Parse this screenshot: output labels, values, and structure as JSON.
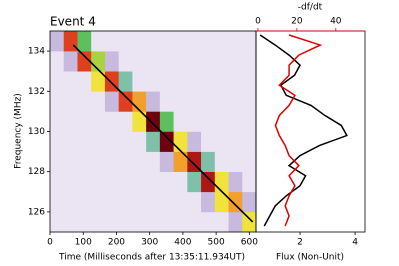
{
  "chart_data": [
    {
      "type": "heatmap",
      "title": "Event 4",
      "xlabel": "Time (Milliseconds after 13:35:11.934UT)",
      "ylabel": "Frequency (MHz)",
      "xlim": [
        0,
        620
      ],
      "ylim": [
        125,
        135
      ],
      "xticks": [
        0,
        100,
        200,
        300,
        400,
        500,
        600
      ],
      "yticks": [
        126,
        128,
        130,
        132,
        134
      ],
      "xbins": [
        0,
        41.33,
        82.67,
        124,
        165.33,
        206.67,
        248,
        289.33,
        330.67,
        372,
        413.33,
        454.67,
        496,
        537.33,
        578.67,
        620
      ],
      "ybins": [
        125,
        126,
        127,
        128,
        129,
        130,
        131,
        132,
        133,
        134,
        135
      ],
      "z": [
        [
          1,
          1,
          1,
          1,
          1,
          1,
          1,
          1,
          1,
          1,
          1,
          1,
          1,
          2,
          6
        ],
        [
          1,
          1,
          1,
          1,
          1,
          1,
          1,
          1,
          1,
          1,
          1,
          2,
          6,
          7,
          2
        ],
        [
          1,
          1,
          1,
          1,
          1,
          1,
          1,
          1,
          1,
          1,
          3,
          9,
          6,
          2,
          1
        ],
        [
          1,
          1,
          1,
          1,
          1,
          1,
          1,
          1,
          2,
          7,
          9,
          3,
          1,
          1,
          1
        ],
        [
          1,
          1,
          1,
          1,
          1,
          1,
          1,
          3,
          10,
          6,
          2,
          1,
          1,
          1,
          1
        ],
        [
          1,
          1,
          1,
          1,
          1,
          1,
          6,
          10,
          4,
          1,
          1,
          1,
          1,
          1,
          1
        ],
        [
          1,
          1,
          1,
          1,
          2,
          8,
          7,
          2,
          1,
          1,
          1,
          1,
          1,
          1,
          1
        ],
        [
          1,
          1,
          1,
          6,
          8,
          3,
          1,
          1,
          1,
          1,
          1,
          1,
          1,
          1,
          1
        ],
        [
          1,
          2,
          8,
          5,
          2,
          1,
          1,
          1,
          1,
          1,
          1,
          1,
          1,
          1,
          1
        ],
        [
          2,
          8,
          4,
          1,
          1,
          1,
          1,
          1,
          1,
          1,
          1,
          1,
          1,
          1,
          1
        ]
      ],
      "colorscale": [
        "#ffffff",
        "#ebe4f2",
        "#c7bade",
        "#7fc0a8",
        "#5dbf5e",
        "#a9d23f",
        "#f1e23c",
        "#f1a02e",
        "#dd3f1f",
        "#ae1717",
        "#6e0010"
      ],
      "fit": {
        "x": [
          70,
          610
        ],
        "values": [
          134.3,
          125.5
        ],
        "color": "#000000"
      }
    },
    {
      "type": "line",
      "xlabel": "Flux (Non-Unit)",
      "x2label": "-df/dt",
      "x2color": "#e00000",
      "ylim": [
        125,
        135
      ],
      "xlim": [
        0.4,
        4.36
      ],
      "xticks": [
        2,
        4
      ],
      "x2lim": [
        -1,
        55
      ],
      "x2ticks": [
        0,
        20,
        40
      ],
      "y": [
        134.8,
        134.3,
        133.8,
        133.3,
        132.8,
        132.3,
        131.8,
        131.3,
        130.8,
        130.3,
        129.8,
        129.3,
        128.8,
        128.3,
        127.8,
        127.3,
        126.8,
        126.3,
        125.8,
        125.3
      ],
      "series": [
        {
          "color": "#000000",
          "values": [
            0.55,
            1.1,
            1.6,
            2.0,
            1.8,
            1.3,
            1.5,
            2.4,
            2.9,
            3.5,
            3.7,
            2.7,
            2.0,
            1.6,
            2.2,
            2.0,
            1.5,
            1.1,
            0.9,
            0.7
          ]
        },
        {
          "color": "#e00000",
          "axis": "x2",
          "values": [
            16,
            32,
            21,
            16,
            16,
            11,
            19,
            16,
            11,
            9,
            11,
            14,
            16,
            21,
            16,
            19,
            16,
            14,
            16,
            14
          ]
        }
      ]
    }
  ]
}
